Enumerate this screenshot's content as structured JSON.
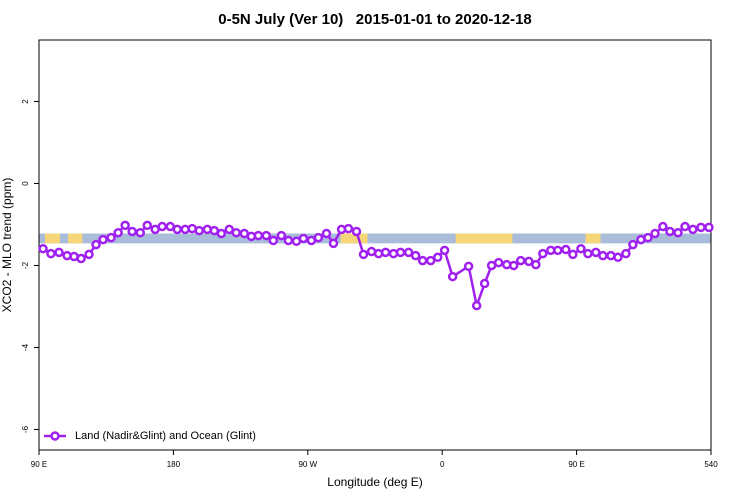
{
  "chart_data": {
    "type": "line",
    "title": "0-5N July (Ver 10)   2015-01-01 to 2020-12-18",
    "x_label": "Longitude (deg E)",
    "y_label": "XCO2 - MLO trend (ppm)",
    "xlim": [
      90,
      540
    ],
    "xticks": [
      {
        "value": 90,
        "label": "90 E"
      },
      180,
      {
        "value": 270,
        "label": "90 W"
      },
      {
        "value": 360,
        "label": "0"
      },
      {
        "value": 450,
        "label": "90 E"
      },
      540
    ],
    "ylim": [
      -6.5,
      3.5
    ],
    "yticks": [
      2,
      0,
      -2,
      -4,
      -6
    ],
    "legend": "bottom-left",
    "band": {
      "ylim": [
        -1.46,
        -1.22
      ],
      "color": "#a9bcd9",
      "land_color": "#f5d77a",
      "land_segments": [
        [
          94,
          104
        ],
        [
          109.5,
          119
        ],
        [
          292,
          310
        ],
        [
          369,
          407
        ],
        [
          456,
          466
        ]
      ]
    },
    "series": [
      {
        "name": "Land (Nadir&Glint) and Ocean (Glint)",
        "color": "#a020f0",
        "x": [
          92.7,
          98.0,
          103.4,
          108.8,
          113.5,
          118.2,
          123.5,
          128.2,
          132.9,
          138.3,
          143.0,
          147.7,
          152.4,
          157.8,
          162.5,
          167.8,
          172.5,
          177.9,
          182.6,
          187.9,
          192.6,
          197.3,
          202.7,
          207.4,
          212.1,
          217.4,
          222.1,
          227.5,
          232.2,
          236.9,
          242.2,
          246.9,
          252.3,
          257.0,
          262.4,
          267.1,
          272.4,
          277.1,
          282.5,
          287.2,
          292.6,
          297.2,
          302.6,
          307.3,
          312.7,
          317.4,
          322.1,
          327.4,
          332.1,
          337.5,
          342.2,
          346.9,
          352.3,
          357.0,
          361.6,
          367.0,
          377.7,
          383.1,
          388.4,
          393.1,
          397.8,
          403.2,
          407.9,
          412.6,
          418.0,
          422.7,
          427.4,
          432.7,
          437.4,
          442.8,
          447.5,
          452.9,
          457.6,
          462.9,
          467.6,
          473.0,
          477.7,
          483.0,
          487.7,
          493.1,
          497.8,
          502.5,
          507.8,
          512.5,
          517.9,
          522.6,
          527.9,
          533.3,
          538.6
        ],
        "values": [
          -1.59,
          -1.71,
          -1.68,
          -1.76,
          -1.78,
          -1.83,
          -1.73,
          -1.49,
          -1.37,
          -1.32,
          -1.2,
          -1.02,
          -1.17,
          -1.2,
          -1.02,
          -1.12,
          -1.05,
          -1.05,
          -1.12,
          -1.12,
          -1.1,
          -1.15,
          -1.12,
          -1.15,
          -1.22,
          -1.12,
          -1.2,
          -1.22,
          -1.29,
          -1.27,
          -1.27,
          -1.39,
          -1.27,
          -1.39,
          -1.41,
          -1.34,
          -1.39,
          -1.32,
          -1.22,
          -1.46,
          -1.12,
          -1.1,
          -1.17,
          -1.73,
          -1.66,
          -1.71,
          -1.68,
          -1.71,
          -1.68,
          -1.68,
          -1.76,
          -1.88,
          -1.88,
          -1.8,
          -1.63,
          -2.27,
          -2.02,
          -2.98,
          -2.44,
          -2.0,
          -1.93,
          -1.98,
          -2.0,
          -1.88,
          -1.9,
          -1.98,
          -1.71,
          -1.63,
          -1.63,
          -1.61,
          -1.73,
          -1.59,
          -1.71,
          -1.68,
          -1.76,
          -1.76,
          -1.8,
          -1.71,
          -1.49,
          -1.37,
          -1.32,
          -1.22,
          -1.05,
          -1.17,
          -1.2,
          -1.05,
          -1.12,
          -1.07,
          -1.07
        ]
      }
    ]
  }
}
